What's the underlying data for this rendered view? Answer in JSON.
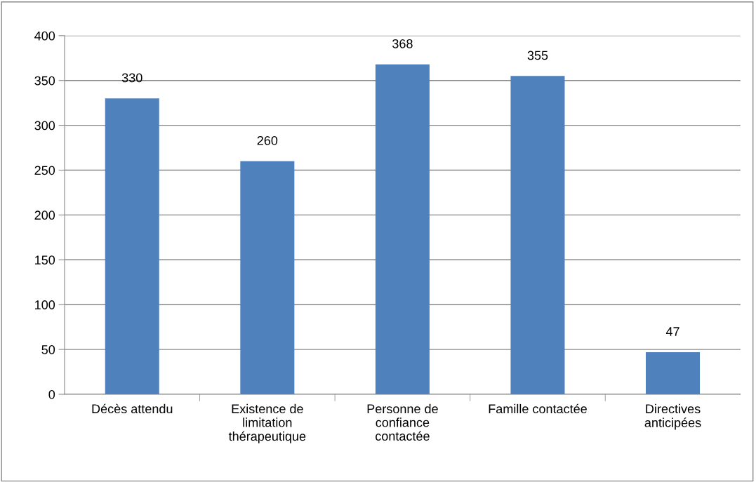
{
  "chart_data": {
    "type": "bar",
    "categories": [
      "Décès attendu",
      "Existence de\nlimitation\nthérapeutique",
      "Personne de\nconfiance\ncontactée",
      "Famille contactée",
      "Directives\nanticipées"
    ],
    "values": [
      330,
      260,
      368,
      355,
      47
    ],
    "color": "#4f81bd",
    "ylim": [
      0,
      400
    ],
    "yticks": [
      0,
      50,
      100,
      150,
      200,
      250,
      300,
      350,
      400
    ],
    "grid": "y",
    "data_labels": true
  }
}
